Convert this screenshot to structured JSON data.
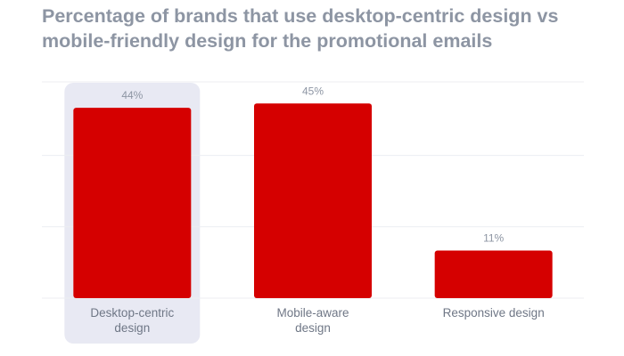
{
  "chart_data": {
    "type": "bar",
    "title": "Percentage of brands that use desktop-centric design vs mobile-friendly design for the promotional emails",
    "categories": [
      [
        "Desktop-centric",
        "design"
      ],
      [
        "Mobile-aware",
        "design"
      ],
      [
        "Responsive design"
      ]
    ],
    "values": [
      44,
      45,
      11
    ],
    "value_labels": [
      "44%",
      "45%",
      "11%"
    ],
    "ylim": [
      0,
      50
    ],
    "grid": true,
    "highlighted_category": 0,
    "colors": {
      "bar": "#d50000",
      "highlight": "#e8e9f3",
      "title": "#8d95a3",
      "grid": "#eceef2"
    }
  }
}
